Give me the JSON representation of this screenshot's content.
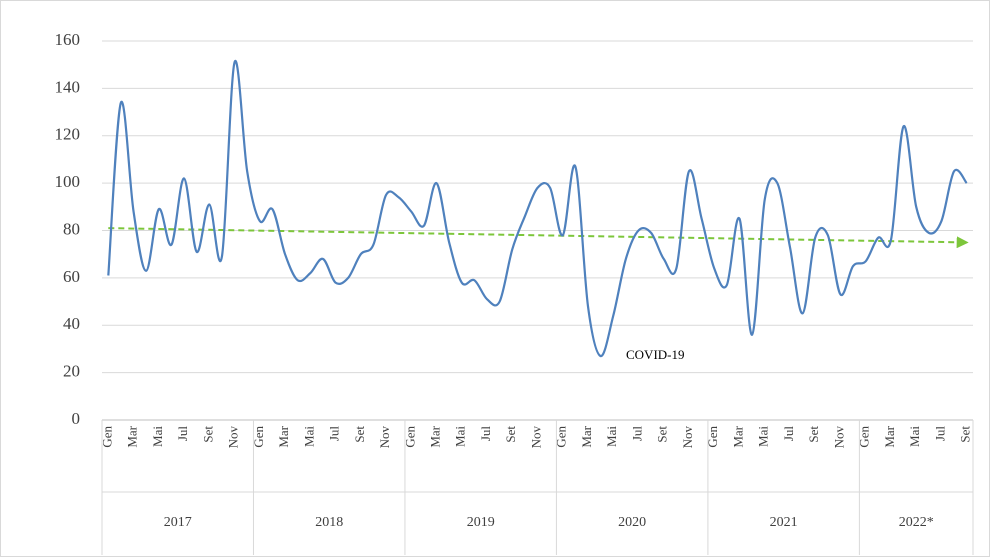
{
  "chart_data": {
    "type": "line",
    "categories": [
      "Gen",
      null,
      "Mar",
      null,
      "Mai",
      null,
      "Jul",
      null,
      "Set",
      null,
      "Nov",
      null,
      "Gen",
      null,
      "Mar",
      null,
      "Mai",
      null,
      "Jul",
      null,
      "Set",
      null,
      "Nov",
      null,
      "Gen",
      null,
      "Mar",
      null,
      "Mai",
      null,
      "Jul",
      null,
      "Set",
      null,
      "Nov",
      null,
      "Gen",
      null,
      "Mar",
      null,
      "Mai",
      null,
      "Jul",
      null,
      "Set",
      null,
      "Nov",
      null,
      "Gen",
      null,
      "Mar",
      null,
      "Mai",
      null,
      "Jul",
      null,
      "Set",
      null,
      "Nov",
      null,
      "Gen",
      null,
      "Mar",
      null,
      "Mai",
      null,
      "Jul",
      null,
      "Set"
    ],
    "groups": [
      "2017",
      "2018",
      "2019",
      "2020",
      "2021",
      "2022*"
    ],
    "series": [
      {
        "color": "#4f81bd",
        "values": [
          61,
          134,
          88,
          63,
          89,
          74,
          102,
          71,
          91,
          69,
          151,
          105,
          84,
          89,
          70,
          59,
          62,
          68,
          58,
          60,
          70,
          74,
          95,
          94,
          88,
          82,
          100,
          75,
          58,
          59,
          51,
          50,
          72,
          86,
          98,
          98,
          78,
          107,
          48,
          27,
          44,
          68,
          80,
          79,
          68,
          64,
          105,
          85,
          64,
          57,
          85,
          36,
          93,
          100,
          73,
          45,
          77,
          78,
          53,
          65,
          67,
          77,
          76,
          124,
          90,
          79,
          84,
          105,
          100
        ]
      }
    ],
    "trend": {
      "color": "#7dc63b",
      "values": [
        81,
        75
      ]
    },
    "annotations": [
      {
        "text": "COVID-19"
      }
    ],
    "ylim": [
      0,
      160
    ],
    "yticks": [
      0,
      20,
      40,
      60,
      80,
      100,
      120,
      140,
      160
    ],
    "grid": true
  }
}
